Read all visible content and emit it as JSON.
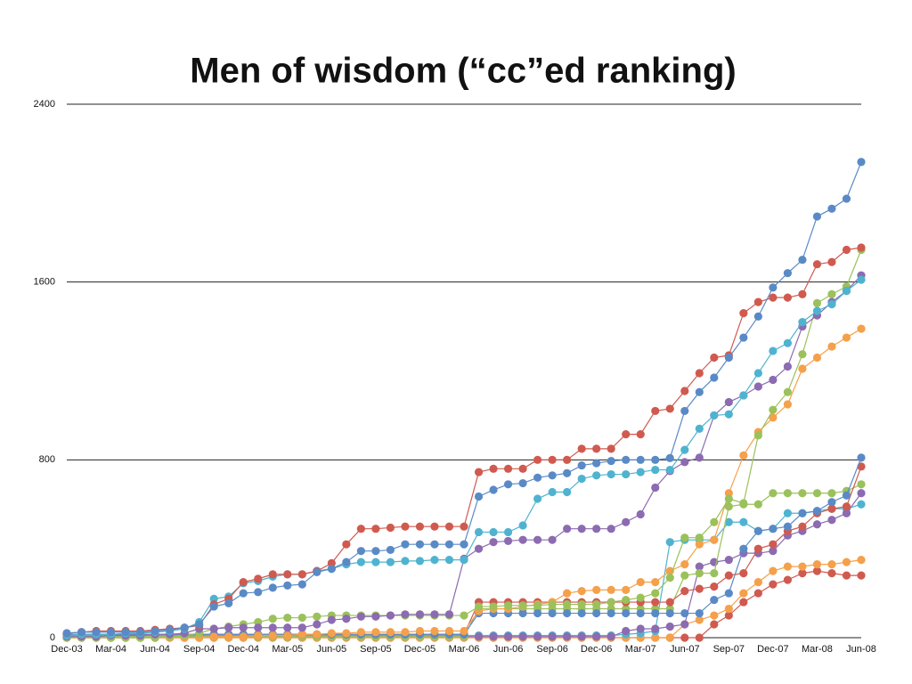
{
  "chart_data": {
    "type": "line",
    "title": "Men of wisdom (“cc”ed ranking)",
    "categories": [
      "Dec-03",
      null,
      null,
      "Mar-04",
      null,
      null,
      "Jun-04",
      null,
      null,
      "Sep-04",
      null,
      null,
      "Dec-04",
      null,
      null,
      "Mar-05",
      null,
      null,
      "Jun-05",
      null,
      null,
      "Sep-05",
      null,
      null,
      "Dec-05",
      null,
      null,
      "Mar-06",
      null,
      null,
      "Jun-06",
      null,
      null,
      "Sep-06",
      null,
      null,
      "Dec-06",
      null,
      null,
      "Mar-07",
      null,
      null,
      "Jun-07",
      null,
      null,
      "Sep-07",
      null,
      null,
      "Dec-07",
      null,
      null,
      "Mar-08",
      null,
      null,
      "Jun-08"
    ],
    "ylim": [
      0,
      2400
    ],
    "yticks": [
      0,
      800,
      1600,
      2400
    ],
    "grid": true,
    "series": [
      {
        "color": "#d05a4f",
        "values": [
          0,
          0,
          0,
          0,
          0,
          0,
          0,
          0,
          0,
          0,
          0,
          0,
          0,
          0,
          0,
          0,
          0,
          0,
          0,
          0,
          0,
          0,
          0,
          0,
          0,
          0,
          0,
          0,
          0,
          0,
          0,
          0,
          0,
          0,
          0,
          0,
          0,
          0,
          0,
          0,
          0,
          0,
          0,
          0,
          60,
          100,
          160,
          200,
          240,
          260,
          290,
          300,
          290,
          280,
          280
        ]
      },
      {
        "color": "#f5a04a",
        "values": [
          0,
          0,
          0,
          0,
          0,
          0,
          0,
          0,
          0,
          0,
          0,
          0,
          0,
          0,
          0,
          0,
          0,
          0,
          0,
          0,
          0,
          0,
          0,
          0,
          0,
          0,
          0,
          0,
          0,
          0,
          0,
          0,
          0,
          0,
          0,
          0,
          0,
          0,
          0,
          0,
          0,
          0,
          60,
          80,
          100,
          130,
          200,
          250,
          300,
          320,
          320,
          330,
          330,
          340,
          350
        ]
      },
      {
        "color": "#4fb3d0",
        "values": [
          10,
          10,
          10,
          10,
          10,
          10,
          10,
          10,
          10,
          10,
          10,
          10,
          10,
          10,
          10,
          10,
          10,
          10,
          10,
          10,
          10,
          10,
          10,
          10,
          10,
          10,
          10,
          10,
          10,
          10,
          10,
          10,
          10,
          10,
          10,
          10,
          10,
          10,
          15,
          20,
          30,
          430,
          440,
          440,
          440,
          520,
          520,
          480,
          490,
          560,
          560,
          570,
          580,
          580,
          600
        ]
      },
      {
        "color": "#8c6bb1",
        "values": [
          5,
          5,
          5,
          5,
          5,
          5,
          5,
          5,
          5,
          5,
          5,
          5,
          5,
          5,
          5,
          5,
          5,
          5,
          5,
          5,
          5,
          5,
          5,
          5,
          5,
          5,
          5,
          5,
          5,
          5,
          5,
          5,
          5,
          5,
          5,
          5,
          5,
          5,
          30,
          40,
          40,
          50,
          60,
          320,
          340,
          350,
          380,
          380,
          390,
          460,
          480,
          510,
          530,
          560,
          650
        ]
      },
      {
        "color": "#9bc15b",
        "values": [
          5,
          5,
          5,
          5,
          5,
          5,
          5,
          5,
          5,
          5,
          5,
          5,
          5,
          5,
          5,
          5,
          5,
          5,
          5,
          5,
          5,
          5,
          5,
          5,
          5,
          5,
          5,
          5,
          130,
          130,
          130,
          130,
          130,
          130,
          130,
          130,
          130,
          130,
          130,
          130,
          130,
          130,
          280,
          290,
          290,
          590,
          600,
          600,
          650,
          650,
          650,
          650,
          650,
          660,
          690
        ]
      },
      {
        "color": "#d05a4f",
        "values": [
          15,
          15,
          15,
          15,
          15,
          15,
          15,
          15,
          15,
          15,
          15,
          15,
          15,
          15,
          15,
          15,
          15,
          15,
          15,
          15,
          15,
          15,
          15,
          15,
          15,
          15,
          15,
          15,
          160,
          160,
          160,
          160,
          160,
          160,
          160,
          160,
          160,
          160,
          160,
          160,
          160,
          160,
          210,
          220,
          230,
          280,
          290,
          400,
          420,
          480,
          500,
          560,
          580,
          590,
          770
        ]
      },
      {
        "color": "#5a8ac6",
        "values": [
          15,
          15,
          15,
          15,
          15,
          15,
          15,
          15,
          15,
          15,
          15,
          15,
          15,
          15,
          15,
          15,
          15,
          15,
          15,
          15,
          15,
          15,
          15,
          15,
          15,
          15,
          15,
          15,
          110,
          110,
          110,
          110,
          110,
          110,
          110,
          110,
          110,
          110,
          110,
          110,
          110,
          110,
          110,
          110,
          170,
          200,
          400,
          480,
          490,
          500,
          560,
          570,
          610,
          640,
          810
        ]
      },
      {
        "color": "#f5a04a",
        "values": [
          0,
          0,
          0,
          0,
          0,
          0,
          0,
          0,
          0,
          0,
          5,
          5,
          5,
          10,
          10,
          10,
          15,
          15,
          20,
          20,
          25,
          25,
          25,
          25,
          30,
          30,
          30,
          30,
          120,
          130,
          130,
          140,
          150,
          160,
          200,
          210,
          215,
          215,
          215,
          250,
          250,
          300,
          330,
          420,
          440,
          650,
          820,
          925,
          990,
          1050,
          1210,
          1260,
          1310,
          1350,
          1390
        ]
      },
      {
        "color": "#9bc15b",
        "values": [
          0,
          0,
          0,
          0,
          0,
          0,
          0,
          5,
          10,
          20,
          40,
          50,
          60,
          70,
          85,
          90,
          90,
          95,
          100,
          100,
          100,
          100,
          100,
          100,
          100,
          100,
          100,
          100,
          140,
          140,
          145,
          145,
          145,
          150,
          150,
          150,
          150,
          160,
          170,
          180,
          200,
          270,
          450,
          450,
          520,
          625,
          605,
          910,
          1025,
          1105,
          1275,
          1505,
          1545,
          1580,
          1745
        ]
      },
      {
        "color": "#8c6bb1",
        "values": [
          5,
          5,
          5,
          10,
          10,
          10,
          15,
          15,
          20,
          40,
          40,
          45,
          45,
          45,
          45,
          45,
          45,
          60,
          80,
          85,
          95,
          95,
          100,
          105,
          105,
          105,
          105,
          355,
          400,
          430,
          435,
          440,
          440,
          440,
          490,
          490,
          490,
          490,
          520,
          555,
          675,
          750,
          790,
          810,
          1000,
          1060,
          1090,
          1130,
          1160,
          1220,
          1400,
          1450,
          1510,
          1560,
          1630
        ]
      },
      {
        "color": "#4fb3d0",
        "values": [
          10,
          15,
          15,
          15,
          20,
          20,
          25,
          30,
          40,
          70,
          175,
          185,
          245,
          255,
          275,
          285,
          285,
          300,
          310,
          330,
          340,
          340,
          340,
          345,
          345,
          350,
          350,
          350,
          475,
          475,
          475,
          505,
          625,
          655,
          655,
          715,
          730,
          735,
          735,
          745,
          755,
          755,
          845,
          940,
          1000,
          1005,
          1090,
          1190,
          1290,
          1325,
          1420,
          1470,
          1500,
          1560,
          1610
        ]
      },
      {
        "color": "#d05a4f",
        "values": [
          20,
          25,
          30,
          30,
          30,
          30,
          35,
          40,
          45,
          55,
          150,
          175,
          250,
          265,
          285,
          285,
          285,
          300,
          335,
          420,
          490,
          490,
          495,
          500,
          500,
          500,
          500,
          500,
          745,
          760,
          760,
          760,
          800,
          800,
          800,
          850,
          850,
          850,
          915,
          915,
          1020,
          1030,
          1110,
          1190,
          1260,
          1270,
          1460,
          1510,
          1530,
          1530,
          1545,
          1680,
          1690,
          1745,
          1755
        ]
      },
      {
        "color": "#5a8ac6",
        "values": [
          20,
          25,
          25,
          25,
          25,
          25,
          30,
          35,
          45,
          60,
          140,
          155,
          200,
          205,
          225,
          235,
          240,
          295,
          310,
          340,
          390,
          390,
          395,
          420,
          420,
          420,
          420,
          420,
          635,
          665,
          690,
          695,
          720,
          730,
          740,
          775,
          785,
          795,
          800,
          800,
          800,
          808,
          1020,
          1105,
          1170,
          1260,
          1350,
          1445,
          1575,
          1640,
          1700,
          1895,
          1930,
          1975,
          2140
        ]
      }
    ]
  }
}
